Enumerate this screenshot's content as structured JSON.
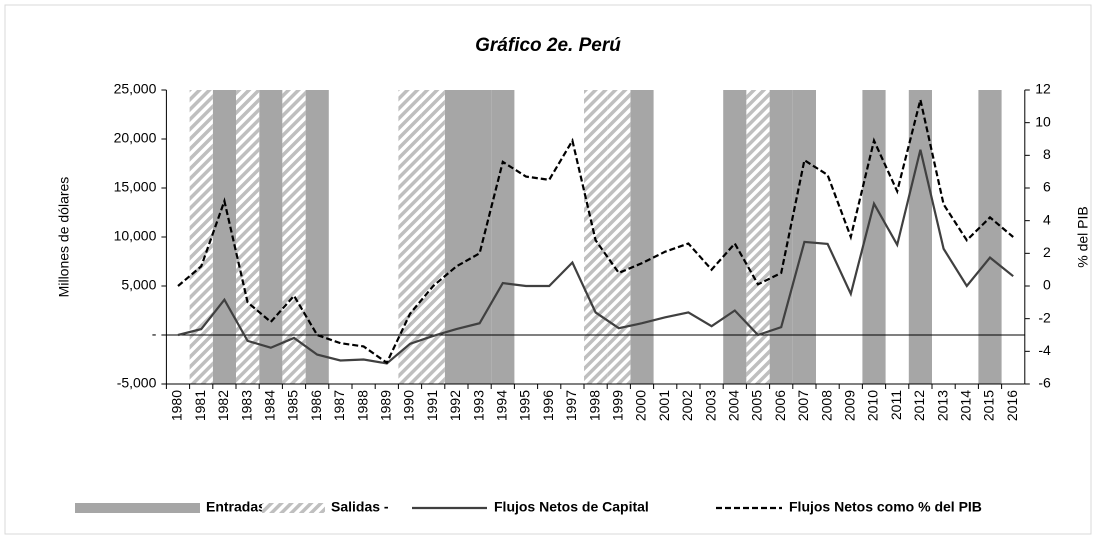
{
  "chart_data": {
    "type": "line",
    "title": "Gráfico 2e. Perú",
    "y_label": "Millones de dólares",
    "y2_label": "% del PIB",
    "categories": [
      "1980",
      "1981",
      "1982",
      "1983",
      "1984",
      "1985",
      "1986",
      "1987",
      "1988",
      "1989",
      "1990",
      "1991",
      "1992",
      "1993",
      "1994",
      "1995",
      "1996",
      "1997",
      "1998",
      "1999",
      "2000",
      "2001",
      "2002",
      "2003",
      "2004",
      "2005",
      "2006",
      "2007",
      "2008",
      "2009",
      "2010",
      "2011",
      "2012",
      "2013",
      "2014",
      "2015",
      "2016"
    ],
    "episodes": [
      {
        "name": "Entradas -",
        "color": "#a6a6a6",
        "pattern": "solid",
        "years": [
          "1982",
          "1984",
          "1986",
          "1992",
          "1993",
          "1994",
          "2000",
          "2004",
          "2006",
          "2007",
          "2010",
          "2012",
          "2015"
        ]
      },
      {
        "name": "Salidas -",
        "color": "#bfbfbf",
        "pattern": "hatch",
        "years": [
          "1981",
          "1983",
          "1985",
          "1990",
          "1991",
          "1998",
          "1999",
          "2005"
        ]
      }
    ],
    "series": [
      {
        "name": "Flujos Netos de Capital",
        "color": "#404040",
        "dash": "solid",
        "axis": "y",
        "values": [
          0,
          600,
          3600,
          -600,
          -1300,
          -300,
          -2000,
          -2600,
          -2500,
          -2900,
          -900,
          -100,
          600,
          1200,
          5300,
          5000,
          5000,
          7400,
          2300,
          700,
          1200,
          1800,
          2300,
          900,
          2500,
          0,
          800,
          9500,
          9300,
          4200,
          13400,
          9200,
          18900,
          8800,
          5000,
          7900,
          6000
        ]
      },
      {
        "name": "Flujos Netos como % del PIB",
        "color": "#000000",
        "dash": "dashed",
        "axis": "y2",
        "values": [
          0,
          1.2,
          5.2,
          -1,
          -2.2,
          -0.6,
          -3,
          -3.5,
          -3.7,
          -4.7,
          -1.7,
          0,
          1.2,
          2,
          7.6,
          6.7,
          6.5,
          8.9,
          2.8,
          0.8,
          1.4,
          2.1,
          2.6,
          1,
          2.6,
          0.1,
          0.8,
          7.7,
          6.8,
          3,
          8.9,
          5.8,
          11.4,
          5,
          2.8,
          4.2,
          3
        ]
      }
    ],
    "ylim": [
      -5000,
      25000
    ],
    "yticks": [
      {
        "value": -5000,
        "label": "-5,000"
      },
      {
        "value": 0,
        "label": "-"
      },
      {
        "value": 5000,
        "label": "5,000"
      },
      {
        "value": 10000,
        "label": "10,000"
      },
      {
        "value": 15000,
        "label": "15,000"
      },
      {
        "value": 20000,
        "label": "20,000"
      },
      {
        "value": 25000,
        "label": "25,000"
      }
    ],
    "y2lim": [
      -6,
      12
    ],
    "y2ticks": [
      -6,
      -4,
      -2,
      0,
      2,
      4,
      6,
      8,
      10,
      12
    ],
    "grid": false
  }
}
